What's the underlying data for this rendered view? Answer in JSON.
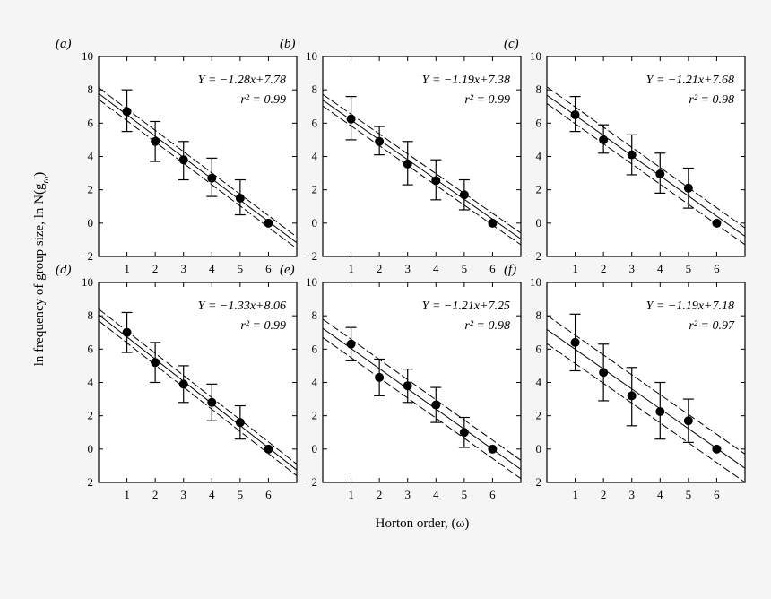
{
  "figure": {
    "xlabel": "Horton order, (ω)",
    "ylabel": "ln frequency of group size, ln N(g",
    "ylabel_sub": "ω",
    "ylabel_close": ")"
  },
  "chart_data": [
    {
      "type": "scatter",
      "label": "(a)",
      "equation": "Y = −1.28x+7.78",
      "r2": "r² = 0.99",
      "x": [
        1,
        2,
        3,
        4,
        5,
        6
      ],
      "y": [
        6.7,
        4.9,
        3.8,
        2.7,
        1.5,
        0.0
      ],
      "err_low": [
        5.5,
        3.7,
        2.6,
        1.6,
        0.5,
        0.0
      ],
      "err_high": [
        8.0,
        6.1,
        4.9,
        3.9,
        2.6,
        0.0
      ],
      "fit": {
        "slope": -1.28,
        "intercept": 7.78
      },
      "band": 0.35,
      "xlim": [
        0,
        7
      ],
      "ylim": [
        -2,
        10
      ],
      "yticks": [
        -2,
        0,
        2,
        4,
        6,
        8,
        10
      ],
      "xticks": [
        1,
        2,
        3,
        4,
        5,
        6
      ]
    },
    {
      "type": "scatter",
      "label": "(b)",
      "equation": "Y = −1.19x+7.38",
      "r2": "r² = 0.99",
      "x": [
        1,
        2,
        3,
        4,
        5,
        6
      ],
      "y": [
        6.25,
        4.9,
        3.55,
        2.55,
        1.7,
        0.0
      ],
      "err_low": [
        5.0,
        4.1,
        2.3,
        1.4,
        0.8,
        0.0
      ],
      "err_high": [
        7.6,
        5.8,
        4.9,
        3.8,
        2.6,
        0.0
      ],
      "fit": {
        "slope": -1.19,
        "intercept": 7.38
      },
      "band": 0.35,
      "xlim": [
        0,
        7
      ],
      "ylim": [
        -2,
        10
      ],
      "yticks": [
        -2,
        0,
        2,
        4,
        6,
        8,
        10
      ],
      "xticks": [
        1,
        2,
        3,
        4,
        5,
        6
      ]
    },
    {
      "type": "scatter",
      "label": "(c)",
      "equation": "Y = −1.21x+7.68",
      "r2": "r² = 0.98",
      "x": [
        1,
        2,
        3,
        4,
        5,
        6
      ],
      "y": [
        6.5,
        5.0,
        4.1,
        2.95,
        2.1,
        0.0
      ],
      "err_low": [
        5.5,
        4.2,
        2.9,
        1.8,
        0.9,
        0.0
      ],
      "err_high": [
        7.6,
        5.9,
        5.3,
        4.2,
        3.3,
        0.0
      ],
      "fit": {
        "slope": -1.21,
        "intercept": 7.68
      },
      "band": 0.5,
      "xlim": [
        0,
        7
      ],
      "ylim": [
        -2,
        10
      ],
      "yticks": [
        -2,
        0,
        2,
        4,
        6,
        8,
        10
      ],
      "xticks": [
        1,
        2,
        3,
        4,
        5,
        6
      ]
    },
    {
      "type": "scatter",
      "label": "(d)",
      "equation": "Y = −1.33x+8.06",
      "r2": "r² = 0.99",
      "x": [
        1,
        2,
        3,
        4,
        5,
        6
      ],
      "y": [
        7.0,
        5.2,
        3.9,
        2.8,
        1.6,
        0.0
      ],
      "err_low": [
        5.8,
        4.0,
        2.8,
        1.7,
        0.6,
        0.0
      ],
      "err_high": [
        8.2,
        6.4,
        5.0,
        3.9,
        2.6,
        0.0
      ],
      "fit": {
        "slope": -1.33,
        "intercept": 8.06
      },
      "band": 0.35,
      "xlim": [
        0,
        7
      ],
      "ylim": [
        -2,
        10
      ],
      "yticks": [
        -2,
        0,
        2,
        4,
        6,
        8,
        10
      ],
      "xticks": [
        1,
        2,
        3,
        4,
        5,
        6
      ]
    },
    {
      "type": "scatter",
      "label": "(e)",
      "equation": "Y = −1.21x+7.25",
      "r2": "r² = 0.98",
      "x": [
        1,
        2,
        3,
        4,
        5,
        6
      ],
      "y": [
        6.3,
        4.3,
        3.8,
        2.65,
        1.0,
        0.0
      ],
      "err_low": [
        5.3,
        3.2,
        2.8,
        1.6,
        0.1,
        0.0
      ],
      "err_high": [
        7.3,
        5.4,
        4.8,
        3.7,
        1.9,
        0.0
      ],
      "fit": {
        "slope": -1.21,
        "intercept": 7.25
      },
      "band": 0.55,
      "xlim": [
        0,
        7
      ],
      "ylim": [
        -2,
        10
      ],
      "yticks": [
        -2,
        0,
        2,
        4,
        6,
        8,
        10
      ],
      "xticks": [
        1,
        2,
        3,
        4,
        5,
        6
      ]
    },
    {
      "type": "scatter",
      "label": "(f)",
      "equation": "Y = −1.19x+7.18",
      "r2": "r² = 0.97",
      "x": [
        1,
        2,
        3,
        4,
        5,
        6
      ],
      "y": [
        6.4,
        4.6,
        3.2,
        2.25,
        1.7,
        0.0
      ],
      "err_low": [
        4.7,
        2.9,
        1.4,
        0.6,
        0.4,
        0.0
      ],
      "err_high": [
        8.1,
        6.3,
        4.9,
        4.0,
        3.0,
        0.0
      ],
      "fit": {
        "slope": -1.19,
        "intercept": 7.18
      },
      "band": 0.85,
      "xlim": [
        0,
        7
      ],
      "ylim": [
        -2,
        10
      ],
      "yticks": [
        -2,
        0,
        2,
        4,
        6,
        8,
        10
      ],
      "xticks": [
        1,
        2,
        3,
        4,
        5,
        6
      ]
    }
  ]
}
